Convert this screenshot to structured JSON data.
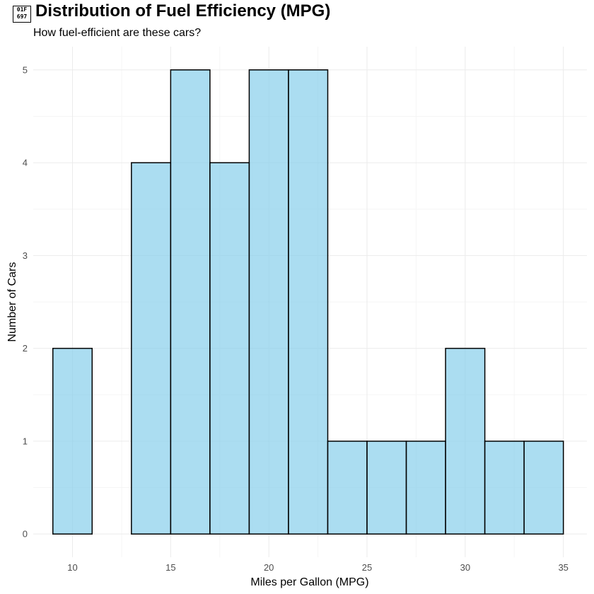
{
  "header": {
    "icon_name": "car-emoji-icon",
    "icon_glyph_top": "01F",
    "icon_glyph_bottom": "697",
    "title": "Distribution of Fuel Efficiency (MPG)",
    "subtitle": "How fuel-efficient are these cars?"
  },
  "chart_data": {
    "type": "bar",
    "subtype": "histogram",
    "title": "Distribution of Fuel Efficiency (MPG)",
    "subtitle": "How fuel-efficient are these cars?",
    "xlabel": "Miles per Gallon (MPG)",
    "ylabel": "Number of Cars",
    "bin_width": 2,
    "bins": [
      {
        "x0": 9,
        "x1": 11,
        "count": 2
      },
      {
        "x0": 11,
        "x1": 13,
        "count": 0
      },
      {
        "x0": 13,
        "x1": 15,
        "count": 4
      },
      {
        "x0": 15,
        "x1": 17,
        "count": 5
      },
      {
        "x0": 17,
        "x1": 19,
        "count": 4
      },
      {
        "x0": 19,
        "x1": 21,
        "count": 5
      },
      {
        "x0": 21,
        "x1": 23,
        "count": 5
      },
      {
        "x0": 23,
        "x1": 25,
        "count": 1
      },
      {
        "x0": 25,
        "x1": 27,
        "count": 1
      },
      {
        "x0": 27,
        "x1": 29,
        "count": 1
      },
      {
        "x0": 29,
        "x1": 31,
        "count": 2
      },
      {
        "x0": 31,
        "x1": 33,
        "count": 1
      },
      {
        "x0": 33,
        "x1": 35,
        "count": 1
      }
    ],
    "xticks": [
      "10",
      "15",
      "20",
      "25",
      "30",
      "35"
    ],
    "yticks": [
      "0",
      "1",
      "2",
      "3",
      "4",
      "5"
    ],
    "xlim": [
      8,
      36.2
    ],
    "ylim": [
      -0.25,
      5.25
    ],
    "grid": true,
    "colors": {
      "fill": "#87CEEB",
      "fill_opacity": 0.7,
      "stroke": "#000000",
      "grid_major": "#ebebeb",
      "grid_minor": "#f5f5f5"
    }
  }
}
